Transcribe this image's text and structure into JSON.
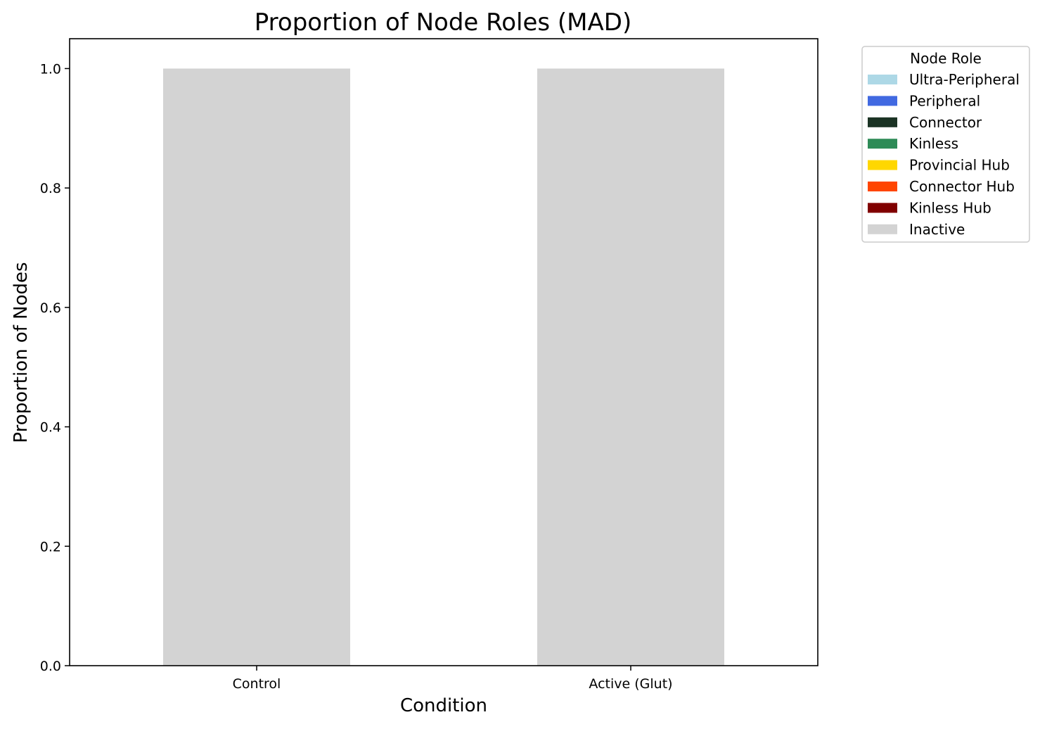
{
  "chart_data": {
    "type": "bar",
    "stacked": true,
    "title": "Proportion of Node Roles (MAD)",
    "xlabel": "Condition",
    "ylabel": "Proportion of Nodes",
    "categories": [
      "Control",
      "Active (Glut)"
    ],
    "ylim": [
      0,
      1.05
    ],
    "yticks": [
      "0.0",
      "0.2",
      "0.4",
      "0.6",
      "0.8",
      "1.0"
    ],
    "grid": false,
    "legend_position": "outside-top-right",
    "legend_title": "Node Role",
    "series": [
      {
        "name": "Ultra-Peripheral",
        "color": "#add8e6",
        "values": [
          0,
          0
        ]
      },
      {
        "name": "Peripheral",
        "color": "#4169e1",
        "values": [
          0,
          0
        ]
      },
      {
        "name": "Connector",
        "color": "#1b3324",
        "values": [
          0,
          0
        ]
      },
      {
        "name": "Kinless",
        "color": "#2e8b57",
        "values": [
          0,
          0
        ]
      },
      {
        "name": "Provincial Hub",
        "color": "#ffd700",
        "values": [
          0,
          0
        ]
      },
      {
        "name": "Connector Hub",
        "color": "#ff4500",
        "values": [
          0,
          0
        ]
      },
      {
        "name": "Kinless Hub",
        "color": "#800000",
        "values": [
          0,
          0
        ]
      },
      {
        "name": "Inactive",
        "color": "#d3d3d3",
        "values": [
          1.0,
          1.0
        ]
      }
    ]
  }
}
